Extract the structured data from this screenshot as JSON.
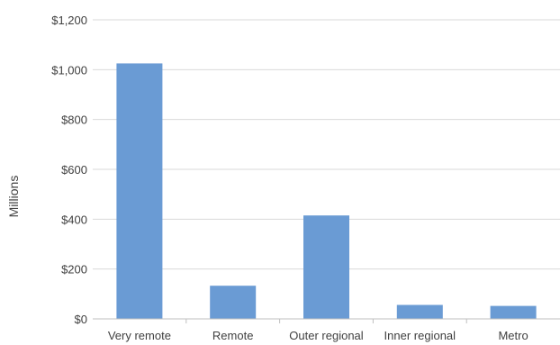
{
  "chart_data": {
    "type": "bar",
    "title": "",
    "xlabel": "",
    "ylabel": "Millions",
    "categories": [
      "Very remote",
      "Remote",
      "Outer regional",
      "Inner regional",
      "Metro"
    ],
    "values": [
      1025,
      133,
      415,
      56,
      52
    ],
    "ylim": [
      0,
      1200
    ],
    "yticks": [
      0,
      200,
      400,
      600,
      800,
      1000,
      1200
    ],
    "ytick_labels": [
      "$0",
      "$200",
      "$400",
      "$600",
      "$800",
      "$1,000",
      "$1,200"
    ],
    "grid": true,
    "legend": "none",
    "bar_color": "#6a9bd4",
    "grid_color": "#d9d9d9",
    "axis_color": "#bfbfbf"
  }
}
